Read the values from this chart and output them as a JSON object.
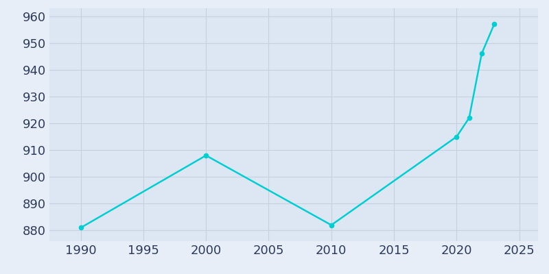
{
  "years": [
    1990,
    2000,
    2010,
    2020,
    2021,
    2022,
    2023
  ],
  "population": [
    881,
    908,
    882,
    915,
    922,
    946,
    957
  ],
  "line_color": "#00CED1",
  "marker_color": "#00CED1",
  "axes_background_color": "#dce7f3",
  "figure_background_color": "#e8eef8",
  "grid_color": "#c5d0e0",
  "xlim": [
    1987.5,
    2026.5
  ],
  "ylim": [
    876,
    963
  ],
  "yticks": [
    880,
    890,
    900,
    910,
    920,
    930,
    940,
    950,
    960
  ],
  "xticks": [
    1990,
    1995,
    2000,
    2005,
    2010,
    2015,
    2020,
    2025
  ],
  "tick_label_color": "#2d3a5a",
  "tick_fontsize": 13,
  "linewidth": 1.8,
  "markersize": 4.5
}
